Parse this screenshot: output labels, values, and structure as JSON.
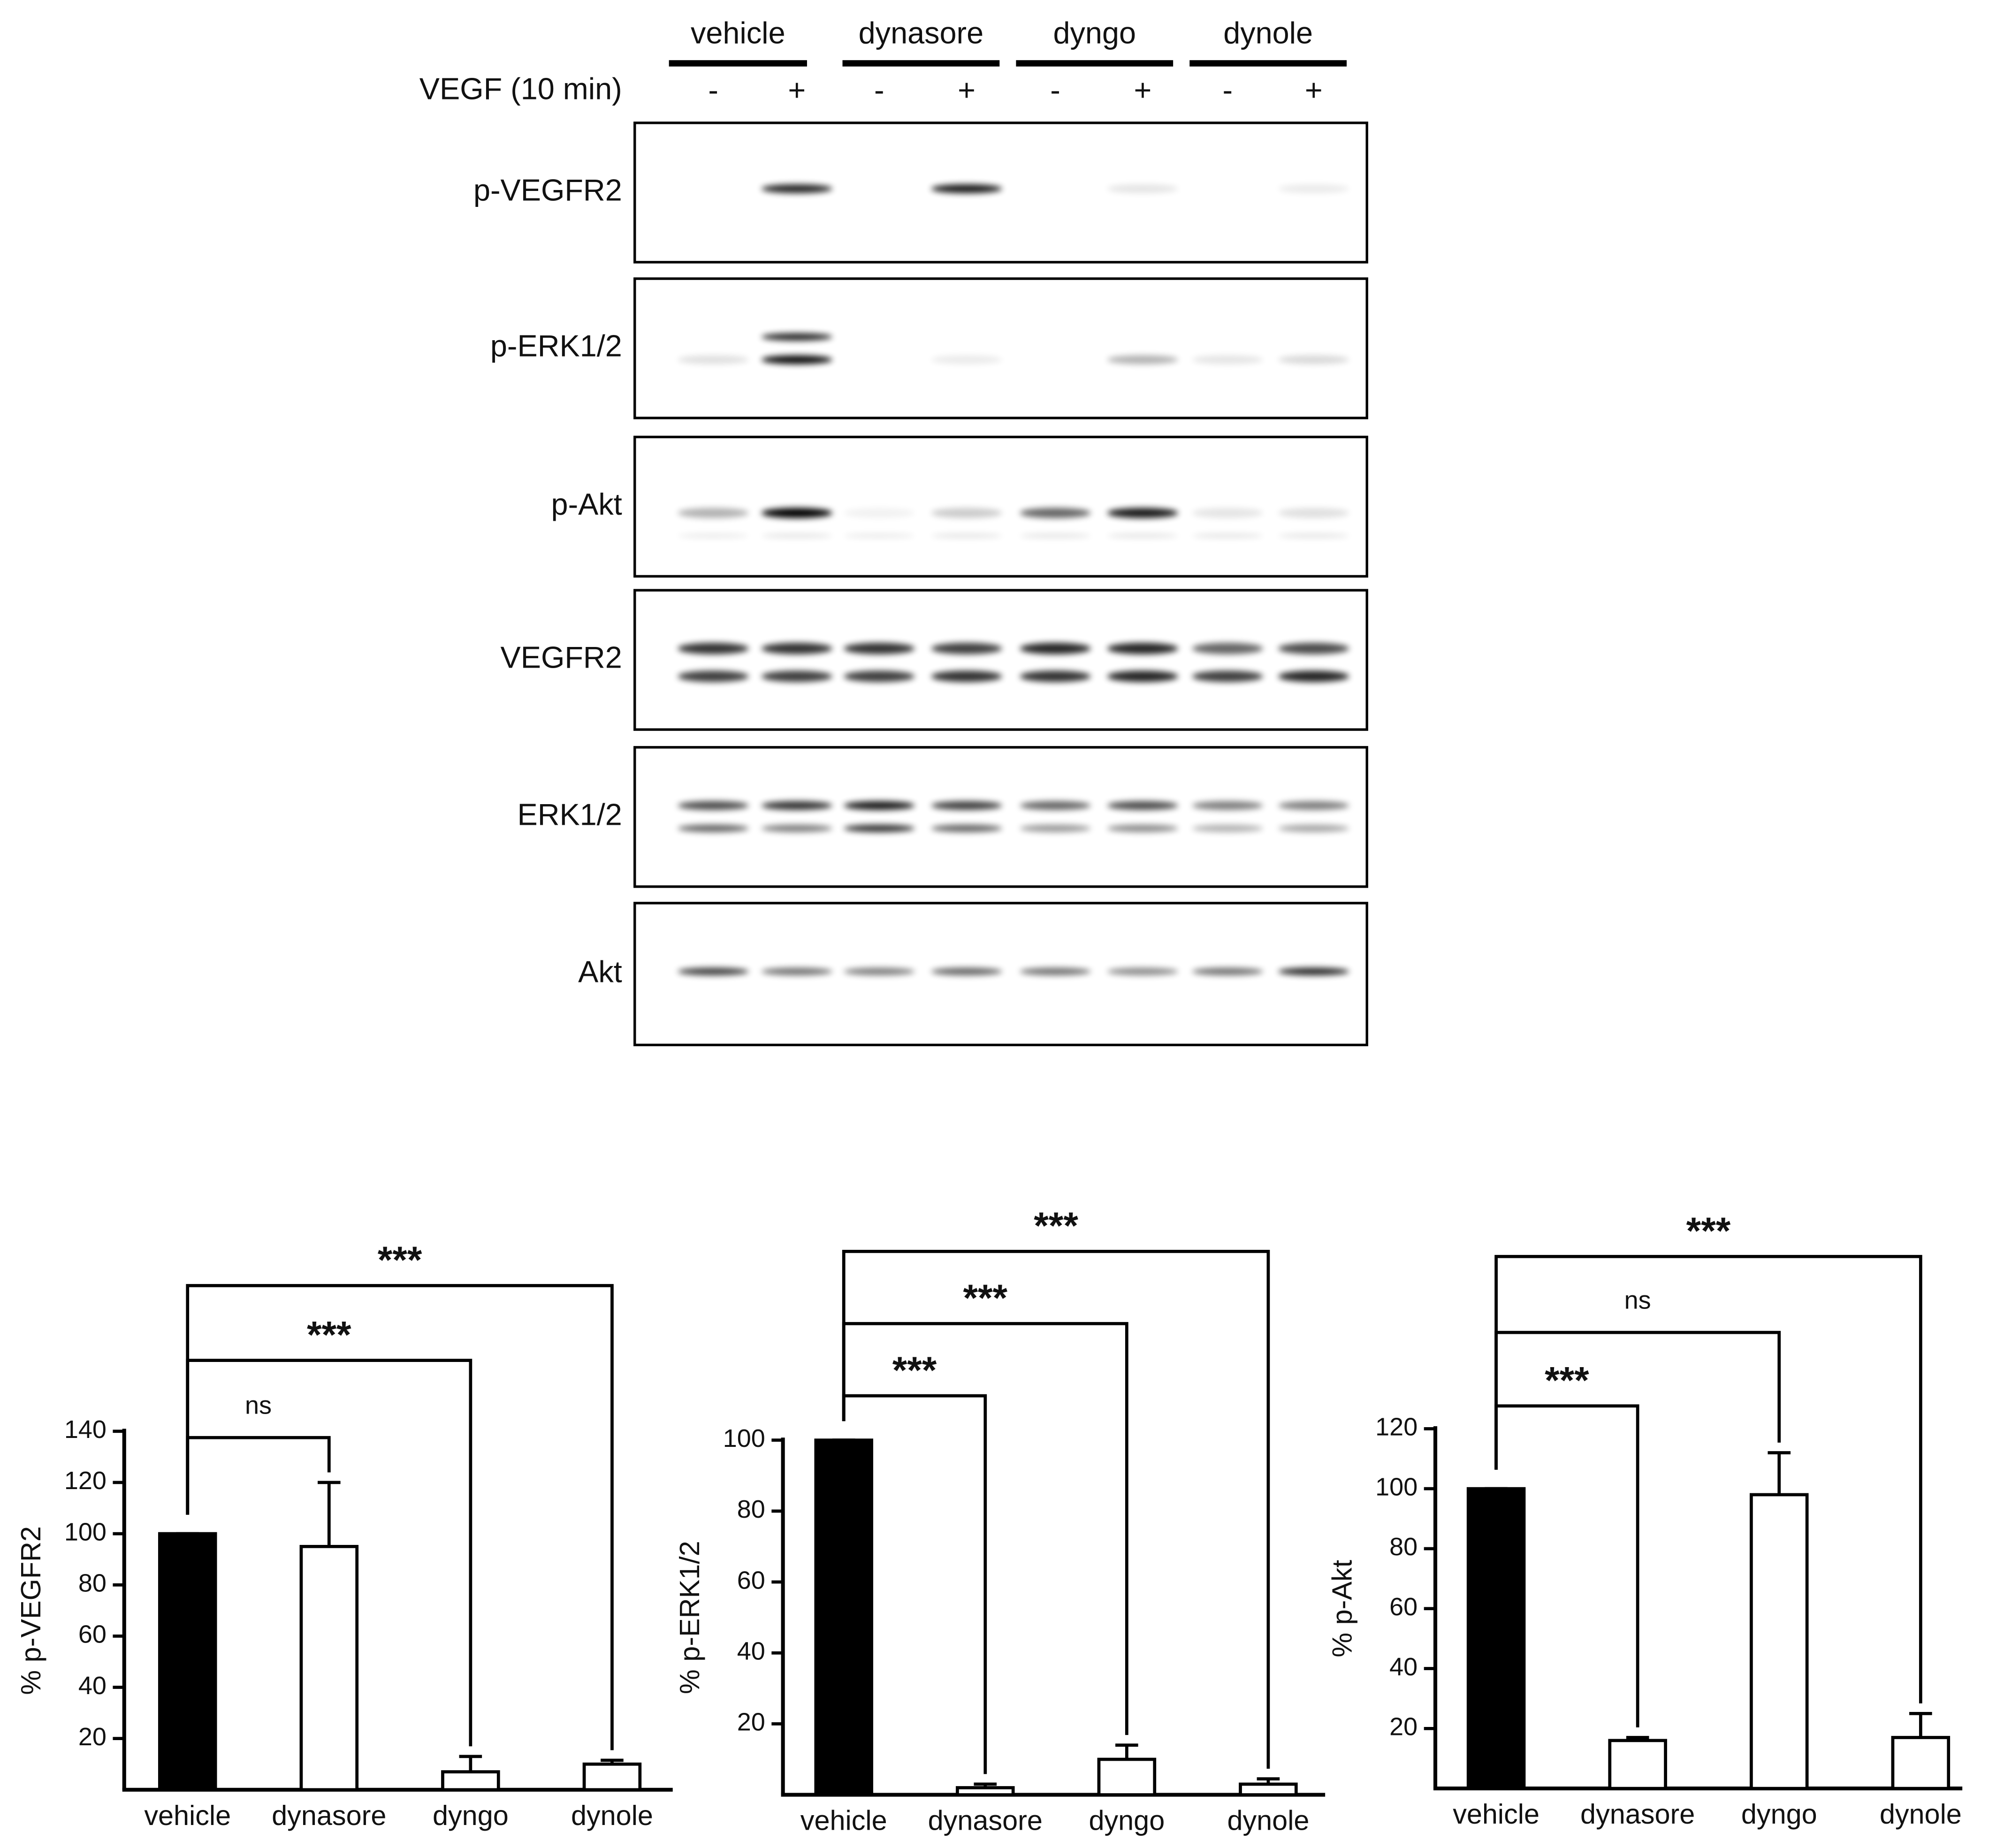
{
  "blot": {
    "groups": [
      "vehicle",
      "dynasore",
      "dyngo",
      "dynole"
    ],
    "treatment_label": "VEGF (10 min)",
    "treatment_signs": [
      "-",
      "+",
      "-",
      "+",
      "-",
      "+",
      "-",
      "+"
    ],
    "rows": [
      "p-VEGFR2",
      "p-ERK1/2",
      "p-Akt",
      "VEGFR2",
      "ERK1/2",
      "Akt"
    ]
  },
  "chart_data": [
    {
      "type": "bar",
      "ylabel": "% p-VEGFR2",
      "categories": [
        "vehicle",
        "dynasore",
        "dyngo",
        "dynole"
      ],
      "values": [
        100,
        95,
        7,
        10
      ],
      "errors": [
        0,
        25,
        6,
        1.5
      ],
      "colors": [
        "#000000",
        "#ffffff",
        "#ffffff",
        "#ffffff"
      ],
      "ylim": [
        0,
        140
      ],
      "yticks": [
        20,
        40,
        60,
        80,
        100,
        120,
        140
      ],
      "annotations": [
        "ns",
        "***",
        "***"
      ]
    },
    {
      "type": "bar",
      "ylabel": "% p-ERK1/2",
      "categories": [
        "vehicle",
        "dynasore",
        "dyngo",
        "dynole"
      ],
      "values": [
        100,
        2,
        10,
        3
      ],
      "errors": [
        0,
        1,
        4,
        1.5
      ],
      "colors": [
        "#000000",
        "#ffffff",
        "#ffffff",
        "#ffffff"
      ],
      "ylim": [
        0,
        100
      ],
      "yticks": [
        20,
        40,
        60,
        80,
        100
      ],
      "annotations": [
        "***",
        "***",
        "***"
      ]
    },
    {
      "type": "bar",
      "ylabel": "% p-Akt",
      "categories": [
        "vehicle",
        "dynasore",
        "dyngo",
        "dynole"
      ],
      "values": [
        100,
        16,
        98,
        17
      ],
      "errors": [
        0,
        1,
        14,
        8
      ],
      "colors": [
        "#000000",
        "#ffffff",
        "#ffffff",
        "#ffffff"
      ],
      "ylim": [
        0,
        120
      ],
      "yticks": [
        20,
        40,
        60,
        80,
        100,
        120
      ],
      "annotations": [
        "***",
        "ns",
        "***"
      ]
    }
  ]
}
